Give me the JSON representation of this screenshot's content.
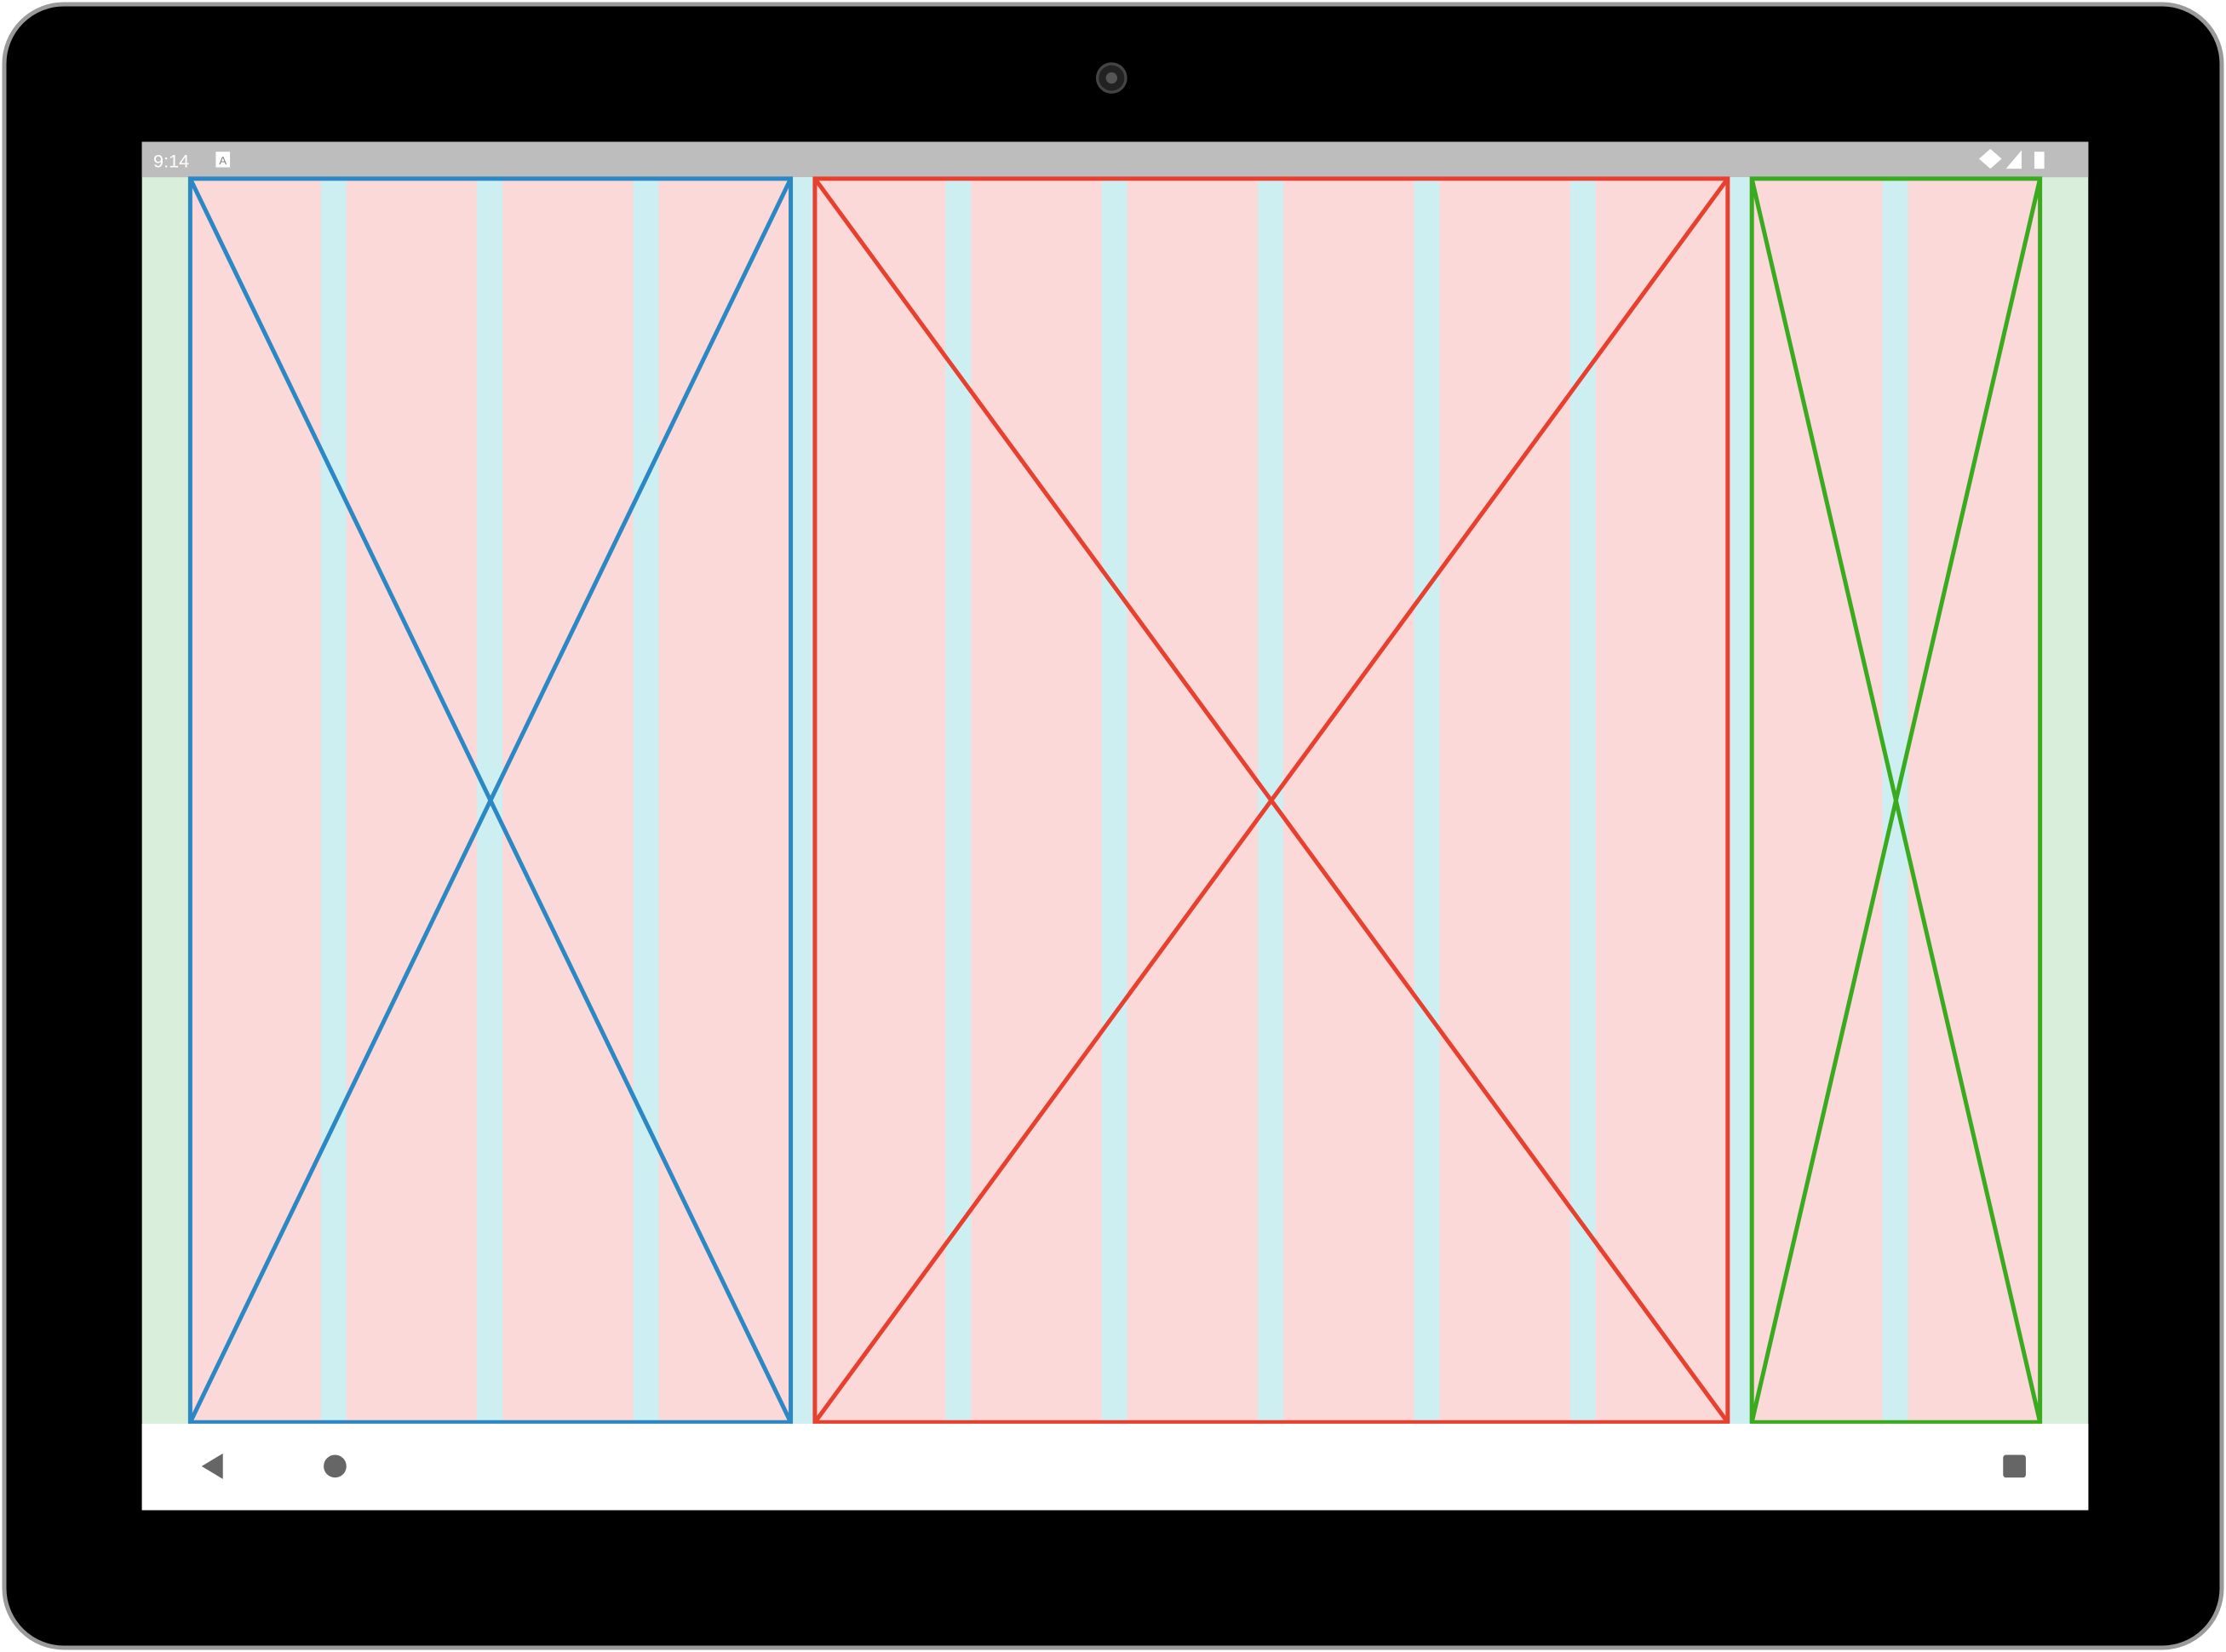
{
  "status_bar": {
    "time": "9:14",
    "notification_icon": "A"
  }
}
